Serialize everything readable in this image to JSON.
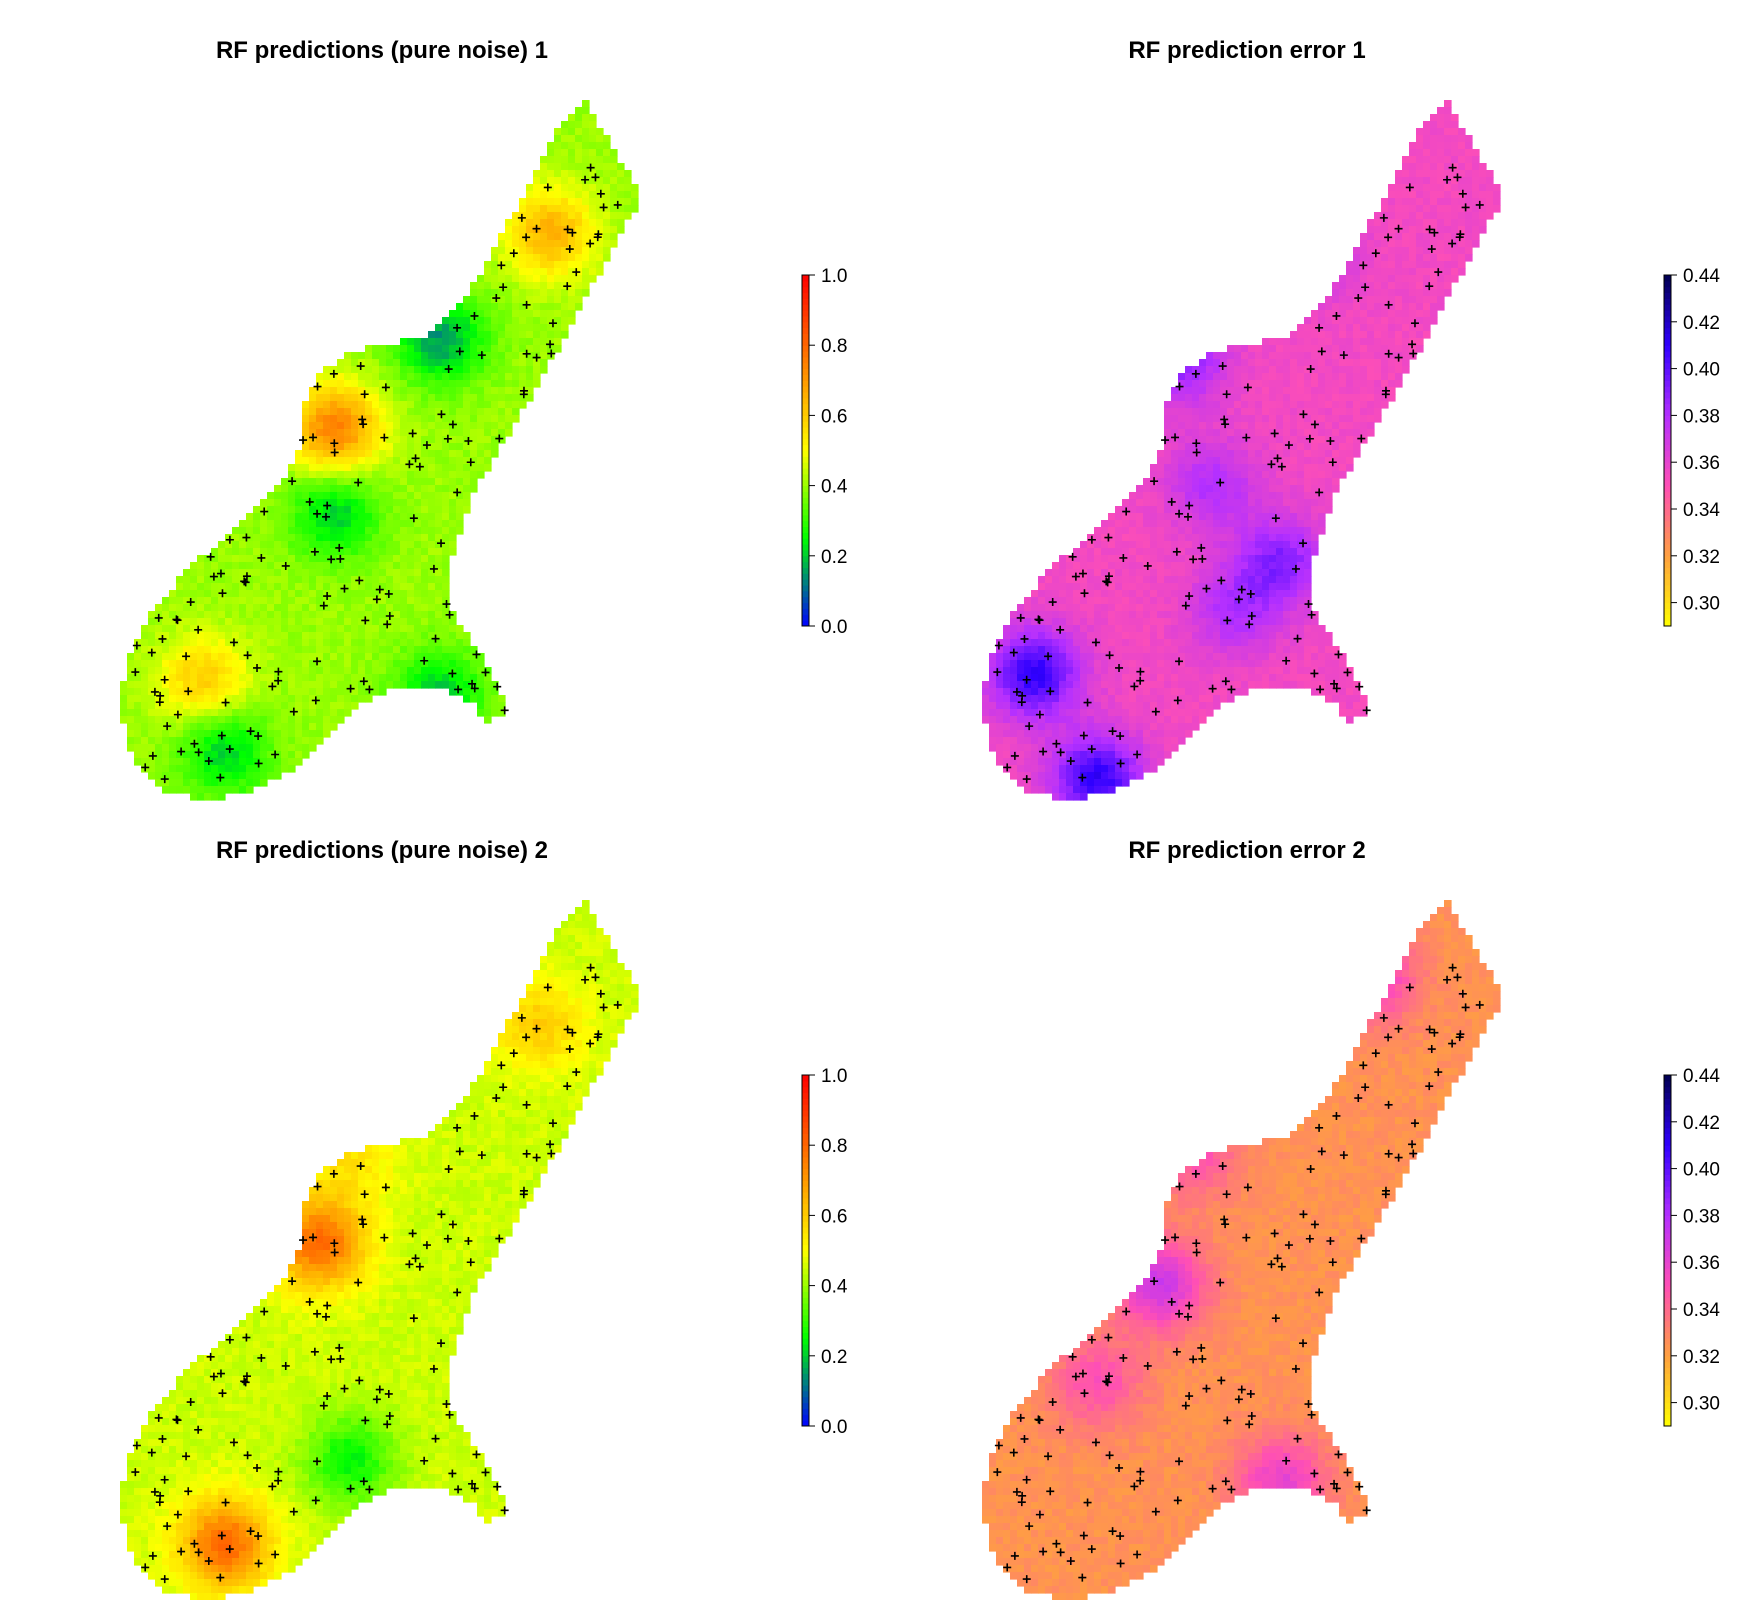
{
  "chart_data": [
    {
      "type": "heatmap",
      "title": "RF predictions (pure noise) 1",
      "palette": "rainbow-blue-to-red",
      "colors": [
        "#0000ff",
        "#00ff00",
        "#ffff00",
        "#ff8000",
        "#ff0000"
      ],
      "legend": {
        "placement": "right",
        "ticks": [
          "0.0",
          "0.2",
          "0.4",
          "0.6",
          "0.8",
          "1.0"
        ],
        "range": [
          0,
          1
        ]
      },
      "dominant_value": 0.4,
      "hotspots": [
        {
          "value": 0.75,
          "loc": [
            0.41,
            0.47
          ]
        },
        {
          "value": 0.15,
          "loc": [
            0.61,
            0.34
          ]
        },
        {
          "value": 0.2,
          "loc": [
            0.41,
            0.59
          ]
        },
        {
          "value": 0.65,
          "loc": [
            0.82,
            0.19
          ]
        },
        {
          "value": 0.2,
          "loc": [
            0.2,
            0.93
          ]
        },
        {
          "value": 0.6,
          "loc": [
            0.16,
            0.83
          ]
        },
        {
          "value": 0.2,
          "loc": [
            0.61,
            0.85
          ]
        }
      ]
    },
    {
      "type": "heatmap",
      "title": "RF prediction error 1",
      "palette": "plasma-yellow-to-navy",
      "colors": [
        "#ffff00",
        "#ffa040",
        "#ff4fb5",
        "#b530ff",
        "#3000ff",
        "#000050"
      ],
      "legend": {
        "placement": "right",
        "ticks": [
          "0.30",
          "0.32",
          "0.34",
          "0.36",
          "0.38",
          "0.40",
          "0.42",
          "0.44"
        ],
        "range": [
          0.29,
          0.44
        ]
      },
      "dominant_value": 0.355,
      "hotspots": [
        {
          "value": 0.41,
          "loc": [
            0.1,
            0.82
          ]
        },
        {
          "value": 0.41,
          "loc": [
            0.22,
            0.97
          ]
        },
        {
          "value": 0.39,
          "loc": [
            0.38,
            0.37
          ]
        },
        {
          "value": 0.38,
          "loc": [
            0.62,
            0.22
          ]
        },
        {
          "value": 0.38,
          "loc": [
            0.44,
            0.55
          ]
        },
        {
          "value": 0.39,
          "loc": [
            0.57,
            0.66
          ]
        },
        {
          "value": 0.38,
          "loc": [
            0.48,
            0.73
          ]
        }
      ]
    },
    {
      "type": "heatmap",
      "title": "RF predictions (pure noise) 2",
      "palette": "rainbow-blue-to-red",
      "colors": [
        "#0000ff",
        "#00ff00",
        "#ffff00",
        "#ff8000",
        "#ff0000"
      ],
      "legend": {
        "placement": "right",
        "ticks": [
          "0.0",
          "0.2",
          "0.4",
          "0.6",
          "0.8",
          "1.0"
        ],
        "range": [
          0,
          1
        ]
      },
      "dominant_value": 0.45,
      "hotspots": [
        {
          "value": 0.8,
          "loc": [
            0.38,
            0.49
          ]
        },
        {
          "value": 0.8,
          "loc": [
            0.2,
            0.92
          ]
        },
        {
          "value": 0.25,
          "loc": [
            0.44,
            0.8
          ]
        },
        {
          "value": 0.6,
          "loc": [
            0.8,
            0.18
          ]
        },
        {
          "value": 0.55,
          "loc": [
            0.44,
            0.37
          ]
        }
      ]
    },
    {
      "type": "heatmap",
      "title": "RF prediction error 2",
      "palette": "plasma-yellow-to-navy",
      "colors": [
        "#ffff00",
        "#ffa040",
        "#ff4fb5",
        "#b530ff",
        "#3000ff",
        "#000050"
      ],
      "legend": {
        "placement": "right",
        "ticks": [
          "0.30",
          "0.32",
          "0.34",
          "0.36",
          "0.38",
          "0.40",
          "0.42",
          "0.44"
        ],
        "range": [
          0.29,
          0.44
        ]
      },
      "dominant_value": 0.325,
      "hotspots": [
        {
          "value": 0.37,
          "loc": [
            0.34,
            0.55
          ]
        },
        {
          "value": 0.36,
          "loc": [
            0.57,
            0.83
          ]
        },
        {
          "value": 0.35,
          "loc": [
            0.4,
            0.36
          ]
        },
        {
          "value": 0.36,
          "loc": [
            0.74,
            0.11
          ]
        },
        {
          "value": 0.35,
          "loc": [
            0.22,
            0.69
          ]
        }
      ]
    }
  ]
}
